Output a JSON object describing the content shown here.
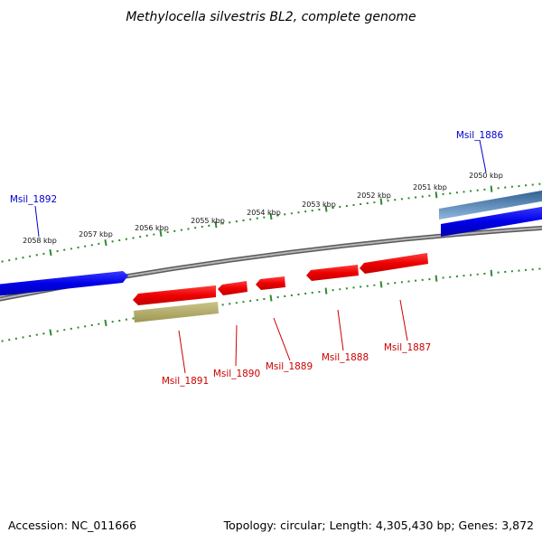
{
  "title": "Methylocella silvestris BL2, complete genome",
  "footer": {
    "accession": "Accession: NC_011666",
    "summary": "Topology: circular; Length: 4,305,430 bp; Genes: 3,872"
  },
  "scale_labels": [
    "2050 kbp",
    "2051 kbp",
    "2052 kbp",
    "2053 kbp",
    "2054 kbp",
    "2055 kbp",
    "2056 kbp",
    "2057 kbp",
    "2058 kbp"
  ],
  "genes": {
    "msil_1886": "Msil_1886",
    "msil_1887": "Msil_1887",
    "msil_1888": "Msil_1888",
    "msil_1889": "Msil_1889",
    "msil_1890": "Msil_1890",
    "msil_1891": "Msil_1891",
    "msil_1892": "Msil_1892"
  },
  "colors": {
    "forward_cds": "#0000ee",
    "reverse_cds": "#ee0000",
    "rna_feature": "#bdb76b",
    "forward_rna": "#4a7db5",
    "backbone": "#808080",
    "ticks": "#2e8b2e"
  }
}
